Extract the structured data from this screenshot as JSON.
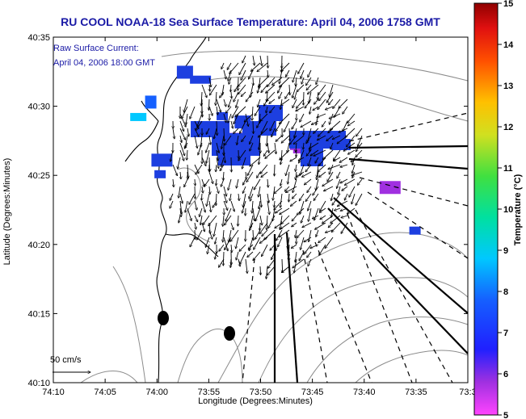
{
  "chart_data": {
    "type": "map",
    "title": "RU COOL  NOAA-18  Sea Surface Temperature:  April 04, 2006 1758 GMT",
    "annotation_lines": [
      "Raw Surface Current:",
      "April 04, 2006 18:00 GMT"
    ],
    "xlabel": "Longitude (Degrees:Minutes)",
    "ylabel": "Latitude (Degrees:Minutes)",
    "x_ticks": [
      "74:10",
      "74:05",
      "74:00",
      "73:55",
      "73:50",
      "73:45",
      "73:40",
      "73:35",
      "73:3"
    ],
    "y_ticks": [
      "40:10",
      "40:15",
      "40:20",
      "40:25",
      "40:30",
      "40:35"
    ],
    "xlim_min": [
      -74.1667,
      -73.5
    ],
    "ylim_min": [
      40.1667,
      40.5833
    ],
    "colorbar": {
      "label": "Temperature (°C)",
      "ticks": [
        "5",
        "6",
        "7",
        "8",
        "9",
        "10",
        "11",
        "12",
        "13",
        "14",
        "15"
      ],
      "range": [
        5,
        15
      ]
    },
    "scale_label": "50 cm/s",
    "sst_patches_deg_c": [
      {
        "lon": -73.895,
        "lat": 40.488,
        "temp": 6.7
      },
      {
        "lon": -73.862,
        "lat": 40.481,
        "temp": 6.7
      },
      {
        "lon": -73.873,
        "lat": 40.463,
        "temp": 6.6
      },
      {
        "lon": -73.777,
        "lat": 40.455,
        "temp": 6.6
      },
      {
        "lon": -73.768,
        "lat": 40.448,
        "temp": 6.6
      },
      {
        "lon": -73.992,
        "lat": 40.435,
        "temp": 7.5
      },
      {
        "lon": -73.995,
        "lat": 40.418,
        "temp": 7.1
      },
      {
        "lon": -73.955,
        "lat": 40.541,
        "temp": 6.8
      },
      {
        "lon": -73.93,
        "lat": 40.532,
        "temp": 6.9
      },
      {
        "lon": -74.01,
        "lat": 40.505,
        "temp": 8.5
      },
      {
        "lon": -74.03,
        "lat": 40.487,
        "temp": 9.0
      },
      {
        "lon": -73.625,
        "lat": 40.402,
        "temp": 6.4
      },
      {
        "lon": -73.585,
        "lat": 40.35,
        "temp": 6.8
      }
    ],
    "grid": false
  },
  "colors": {
    "title": "#1a1aa6",
    "coast": "#000000",
    "contours": "#8c8c8c",
    "sst_patch_main": "#1d3fe0"
  }
}
